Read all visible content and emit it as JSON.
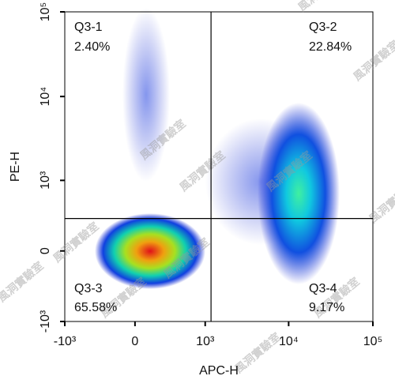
{
  "chart_data": {
    "type": "scatter",
    "x_label": "APC-H",
    "y_label": "PE-H",
    "scale": "biexponential",
    "xlim": [
      -1000,
      100000
    ],
    "ylim": [
      -1000,
      100000
    ],
    "xticks": [
      {
        "value": -1000,
        "label": "-10³"
      },
      0,
      {
        "value": 1000,
        "label": "10³"
      },
      {
        "value": 10000,
        "label": "10⁴"
      },
      {
        "value": 100000,
        "label": "10⁵"
      }
    ],
    "yticks": [
      {
        "value": -1000,
        "label": "-10³"
      },
      0,
      {
        "value": 1000,
        "label": "10³"
      },
      {
        "value": 10000,
        "label": "10⁴"
      },
      {
        "value": 100000,
        "label": "10⁵"
      }
    ],
    "gate_x": 1180,
    "gate_y": 300,
    "quadrants": [
      {
        "name": "Q3-1",
        "percent": "2.40%"
      },
      {
        "name": "Q3-2",
        "percent": "22.84%"
      },
      {
        "name": "Q3-3",
        "percent": "65.58%"
      },
      {
        "name": "Q3-4",
        "percent": "9.17%"
      }
    ],
    "watermark": "風洞實驗室"
  }
}
